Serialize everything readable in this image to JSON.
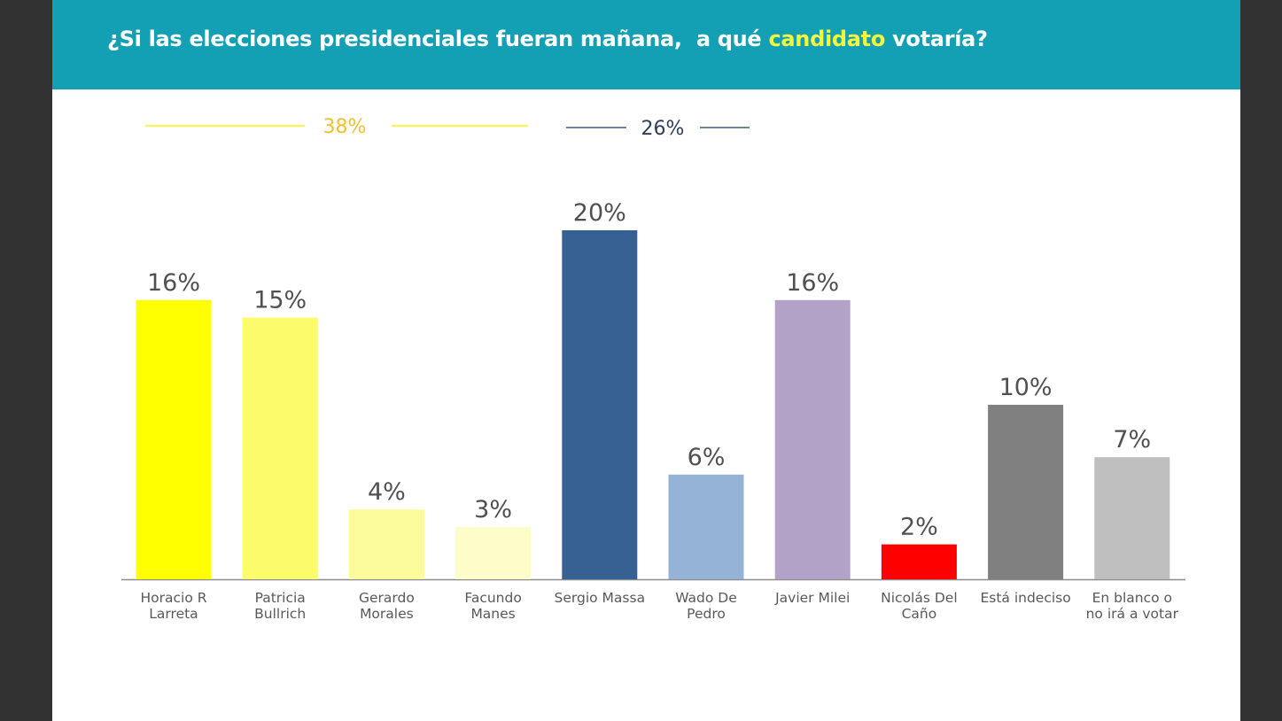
{
  "header": {
    "title_before": "¿Si las elecciones presidenciales fueran mañana,  a qué ",
    "title_highlight": "candidato",
    "title_after": " votaría?",
    "background_color": "#14a0b4",
    "highlight_color": "#f4f73a"
  },
  "chart_data": {
    "type": "bar",
    "title": "¿Si las elecciones presidenciales fueran mañana,  a qué candidato votaría?",
    "xlabel": "",
    "ylabel": "",
    "ylim": [
      0,
      20
    ],
    "grid": false,
    "legend": "none",
    "categories": [
      [
        "Horacio R",
        "Larreta"
      ],
      [
        "Patricia",
        "Bullrich"
      ],
      [
        "Gerardo",
        "Morales"
      ],
      [
        "Facundo",
        "Manes"
      ],
      [
        "Sergio Massa"
      ],
      [
        "Wado De",
        "Pedro"
      ],
      [
        "Javier Milei"
      ],
      [
        "Nicolás Del",
        "Caño"
      ],
      [
        "Está indeciso"
      ],
      [
        "En blanco o",
        "no irá a votar"
      ]
    ],
    "values": [
      16,
      15,
      4,
      3,
      20,
      6,
      16,
      2,
      10,
      7
    ],
    "value_labels": [
      "16%",
      "15%",
      "4%",
      "3%",
      "20%",
      "6%",
      "16%",
      "2%",
      "10%",
      "7%"
    ],
    "colors": [
      "#ffff00",
      "#fbfb6b",
      "#fbfb9c",
      "#fdfdca",
      "#386193",
      "#95b3d7",
      "#b2a2c7",
      "#ff0000",
      "#808080",
      "#bfbfbf"
    ],
    "group_annotations": [
      {
        "label": "38%",
        "spans": [
          0,
          1,
          2,
          3
        ],
        "color": "#f5f56a",
        "text_color": "#f0c030"
      },
      {
        "label": "26%",
        "spans": [
          4,
          5
        ],
        "color": "#3f5a80",
        "text_color": "#2d3e55"
      }
    ]
  }
}
